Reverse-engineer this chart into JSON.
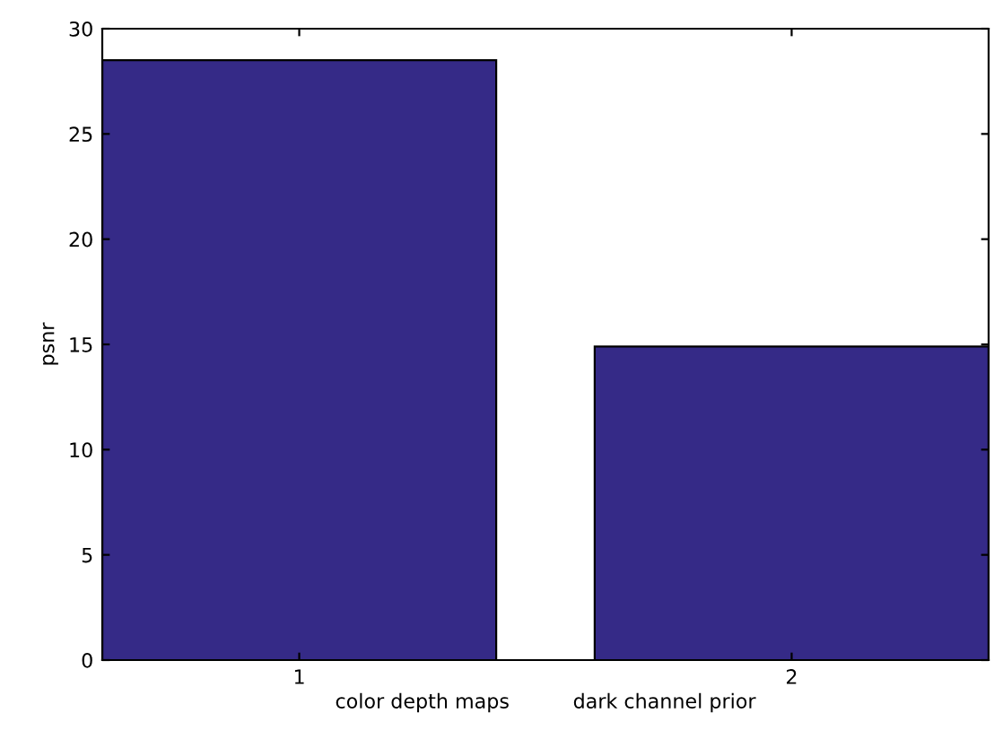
{
  "chart_data": {
    "type": "bar",
    "x": [
      1,
      2
    ],
    "values": [
      28.5,
      14.9
    ],
    "color": "#352a87",
    "xlim": [
      0.6,
      2.4
    ],
    "xticks": [
      1,
      2
    ],
    "ylim": [
      0,
      30
    ],
    "yticks": [
      0,
      5,
      10,
      15,
      20,
      25,
      30
    ],
    "ylabel": "psnr",
    "xlabel": "color depth maps          dark channel prior",
    "grid": false,
    "legend": false
  }
}
